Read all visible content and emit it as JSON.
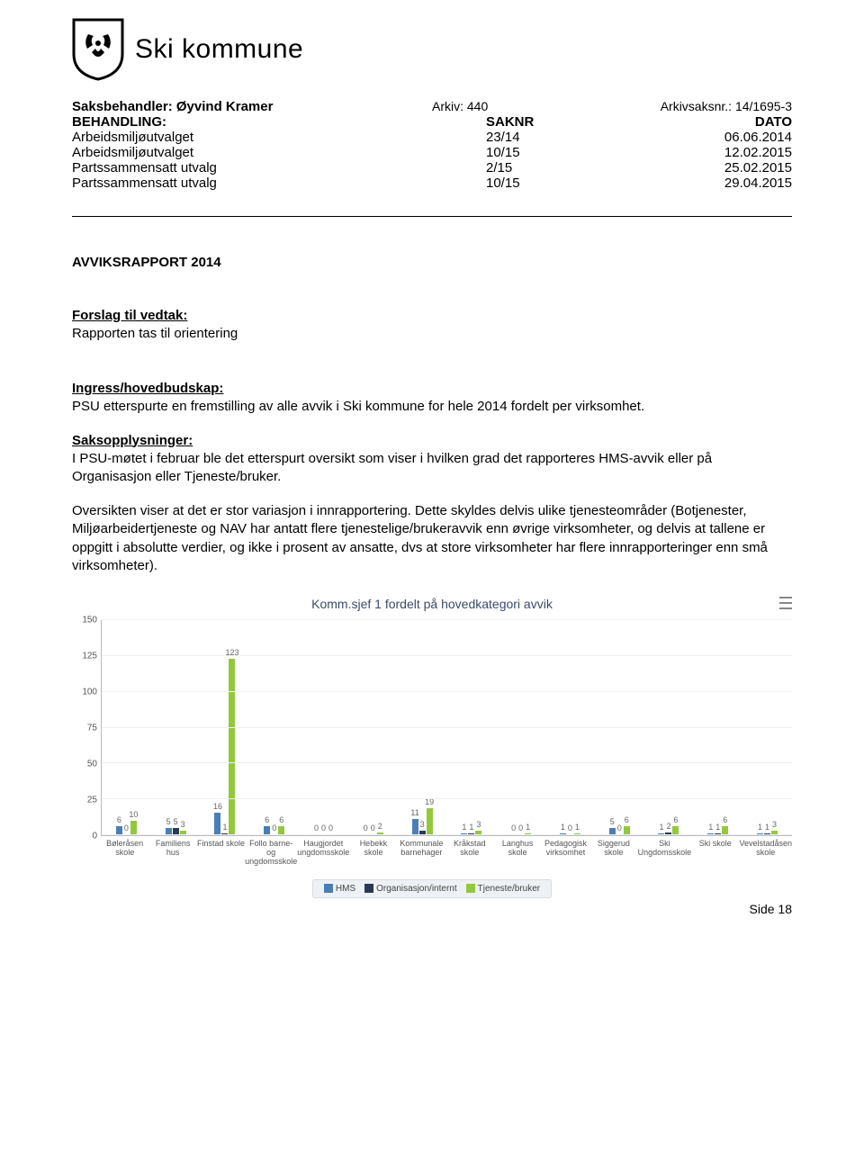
{
  "org": {
    "name": "Ski kommune"
  },
  "meta": {
    "saksbehandler_label": "Saksbehandler:",
    "saksbehandler": "Øyvind Kramer",
    "arkiv_label": "Arkiv:",
    "arkiv": "440",
    "arkivsaksnr_label": "Arkivsaksnr.:",
    "arkivsaksnr": "14/1695-3",
    "head_c1": "BEHANDLING:",
    "head_c2": "SAKNR",
    "head_c3": "DATO",
    "rows": [
      {
        "c1": "Arbeidsmiljøutvalget",
        "c2": "23/14",
        "c3": "06.06.2014"
      },
      {
        "c1": "Arbeidsmiljøutvalget",
        "c2": "10/15",
        "c3": "12.02.2015"
      },
      {
        "c1": "Partssammensatt utvalg",
        "c2": "2/15",
        "c3": "25.02.2015"
      },
      {
        "c1": "Partssammensatt utvalg",
        "c2": "10/15",
        "c3": "29.04.2015"
      }
    ]
  },
  "title": "AVVIKSRAPPORT 2014",
  "forslag": {
    "head": "Forslag til vedtak:",
    "body": "Rapporten tas til orientering"
  },
  "ingress": {
    "head": "Ingress/hovedbudskap:",
    "body": "PSU etterspurte en fremstilling av alle avvik i Ski kommune for hele 2014 fordelt per virksomhet."
  },
  "saksopp": {
    "head": "Saksopplysninger:",
    "p1": "I PSU-møtet i februar ble det etterspurt oversikt som viser i hvilken grad det rapporteres HMS-avvik eller på Organisasjon eller Tjeneste/bruker.",
    "p2": "Oversikten viser at det er stor variasjon i innrapportering. Dette skyldes delvis ulike tjenesteområder (Botjenester, Miljøarbeidertjeneste og NAV har antatt flere tjenestelige/brukeravvik enn øvrige virksomheter, og delvis at tallene er oppgitt i absolutte verdier, og ikke i prosent av ansatte, dvs at store virksomheter har flere innrapporteringer enn små virksomheter)."
  },
  "chart": {
    "title": "Komm.sjef 1 fordelt på hovedkategori avvik",
    "y_max": 150,
    "y_ticks": [
      0,
      25,
      50,
      75,
      100,
      125,
      150
    ],
    "colors": {
      "hms": "#4a7fb5",
      "org": "#2a3a55",
      "tjeneste": "#93c83d",
      "grid": "#eef0f4",
      "axis": "#bbbbbb"
    },
    "legend": [
      {
        "label": "HMS",
        "color": "#4a7fb5"
      },
      {
        "label": "Organisasjon/internt",
        "color": "#2a3a55"
      },
      {
        "label": "Tjeneste/bruker",
        "color": "#93c83d"
      }
    ],
    "categories": [
      {
        "label": "Bøleråsen skole",
        "hms": 6,
        "org": 0,
        "tjeneste": 10
      },
      {
        "label": "Familiens hus",
        "hms": 5,
        "org": 5,
        "tjeneste": 3
      },
      {
        "label": "Finstad skole",
        "hms": 16,
        "org": 1,
        "tjeneste": 123
      },
      {
        "label": "Follo barne- og ungdomsskole",
        "hms": 6,
        "org": 0,
        "tjeneste": 6
      },
      {
        "label": "Haugjordet ungdomsskole",
        "hms": 0,
        "org": 0,
        "tjeneste": 0
      },
      {
        "label": "Hebekk skole",
        "hms": 0,
        "org": 0,
        "tjeneste": 2
      },
      {
        "label": "Kommunale barnehager",
        "hms": 11,
        "org": 3,
        "tjeneste": 19
      },
      {
        "label": "Kråkstad skole",
        "hms": 1,
        "org": 1,
        "tjeneste": 3
      },
      {
        "label": "Langhus skole",
        "hms": 0,
        "org": 0,
        "tjeneste": 1
      },
      {
        "label": "Pedagogisk virksomhet",
        "hms": 1,
        "org": 0,
        "tjeneste": 1
      },
      {
        "label": "Siggerud skole",
        "hms": 5,
        "org": 0,
        "tjeneste": 6
      },
      {
        "label": "Ski Ungdomsskole",
        "hms": 1,
        "org": 2,
        "tjeneste": 6
      },
      {
        "label": "Ski skole",
        "hms": 1,
        "org": 1,
        "tjeneste": 6
      },
      {
        "label": "Vevelstadåsen skole",
        "hms": 1,
        "org": 1,
        "tjeneste": 3
      }
    ]
  },
  "footer": {
    "page": "Side 18"
  }
}
